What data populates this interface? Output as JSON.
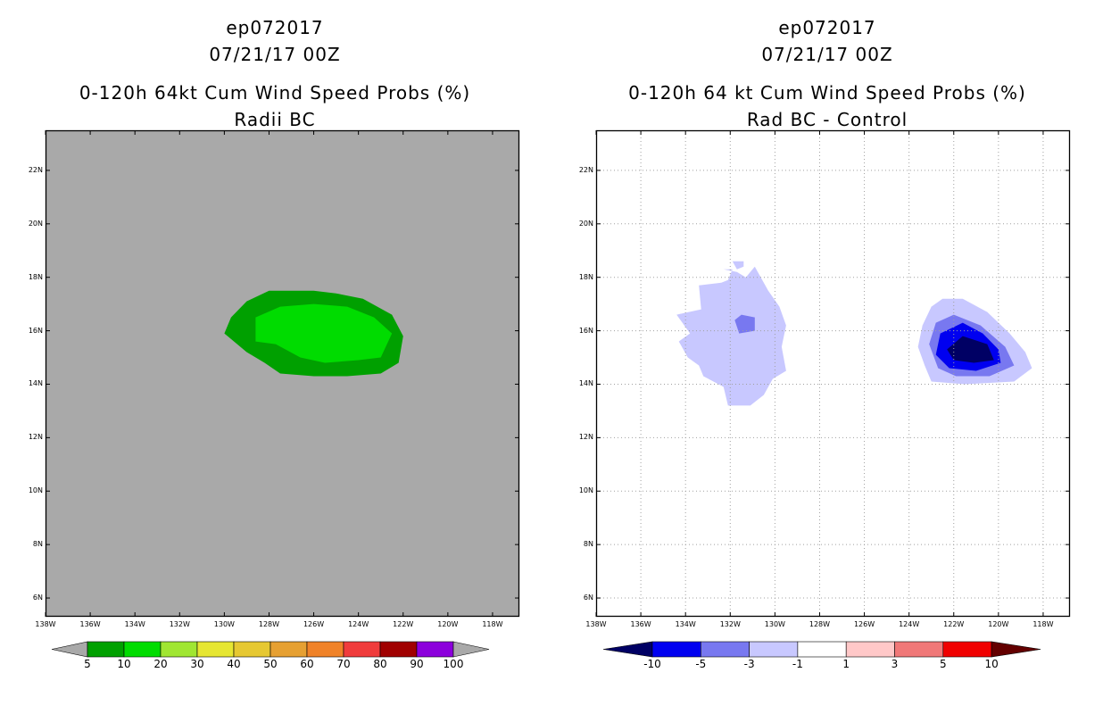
{
  "chart_data": [
    {
      "type": "heatmap",
      "title_lines": [
        "ep072017",
        "07/21/17 00Z",
        "0-120h 64kt Cum Wind Speed Probs (%)",
        "Radii BC"
      ],
      "xlabel": "",
      "ylabel": "",
      "xlim": [
        138,
        116.8
      ],
      "ylim": [
        5.3,
        23.5
      ],
      "x_ticks": [
        "138W",
        "136W",
        "134W",
        "132W",
        "130W",
        "128W",
        "126W",
        "124W",
        "122W",
        "120W",
        "118W"
      ],
      "y_ticks": [
        "6N",
        "8N",
        "10N",
        "12N",
        "14N",
        "16N",
        "18N",
        "20N",
        "22N"
      ],
      "grid": false,
      "background_color": "#a9a9a9",
      "contours": [
        {
          "level": 5,
          "color": "#00a000",
          "points": [
            [
              128,
              17.5
            ],
            [
              127,
              17.5
            ],
            [
              126,
              17.5
            ],
            [
              125,
              17.4
            ],
            [
              123.8,
              17.2
            ],
            [
              122.5,
              16.6
            ],
            [
              122,
              15.8
            ],
            [
              122.2,
              14.8
            ],
            [
              123,
              14.4
            ],
            [
              124.5,
              14.3
            ],
            [
              126,
              14.3
            ],
            [
              127.5,
              14.4
            ],
            [
              128.2,
              14.8
            ],
            [
              129,
              15.2
            ],
            [
              130,
              15.9
            ],
            [
              129.7,
              16.5
            ],
            [
              129,
              17.1
            ]
          ]
        },
        {
          "level": 10,
          "color": "#00dc00",
          "points": [
            [
              128.6,
              16.5
            ],
            [
              127.5,
              16.9
            ],
            [
              126,
              17.0
            ],
            [
              124.5,
              16.9
            ],
            [
              123.3,
              16.5
            ],
            [
              122.5,
              15.9
            ],
            [
              123,
              15
            ],
            [
              124,
              14.9
            ],
            [
              125.5,
              14.8
            ],
            [
              126.6,
              15
            ],
            [
              127.7,
              15.5
            ],
            [
              128.6,
              15.6
            ]
          ]
        }
      ],
      "colorbar": {
        "colors": [
          "#a9a9a9",
          "#00a000",
          "#00dc00",
          "#a0e632",
          "#e6e632",
          "#e6c832",
          "#e6a032",
          "#f08228",
          "#f03c3c",
          "#a00000",
          "#8c00dc",
          "#a9a9a9"
        ],
        "labels": [
          "5",
          "10",
          "20",
          "30",
          "40",
          "50",
          "60",
          "70",
          "80",
          "90",
          "100"
        ]
      }
    },
    {
      "type": "heatmap",
      "title_lines": [
        "ep072017",
        "07/21/17 00Z",
        "0-120h 64 kt Cum Wind Speed Probs (%)",
        "Rad BC - Control"
      ],
      "xlabel": "",
      "ylabel": "",
      "xlim": [
        138,
        116.8
      ],
      "ylim": [
        5.3,
        23.5
      ],
      "x_ticks": [
        "138W",
        "136W",
        "134W",
        "132W",
        "130W",
        "128W",
        "126W",
        "124W",
        "122W",
        "120W",
        "118W"
      ],
      "y_ticks": [
        "6N",
        "8N",
        "10N",
        "12N",
        "14N",
        "16N",
        "18N",
        "20N",
        "22N"
      ],
      "grid": true,
      "background_color": "#ffffff",
      "contours": [
        {
          "level": -1,
          "color": "#c8c8ff",
          "points": [
            [
              132.3,
              18.3
            ],
            [
              131.7,
              18.2
            ],
            [
              131.3,
              18.0
            ],
            [
              130.9,
              18.4
            ],
            [
              130.3,
              17.5
            ],
            [
              129.8,
              16.9
            ],
            [
              129.5,
              16.2
            ],
            [
              129.7,
              15.4
            ],
            [
              129.5,
              14.5
            ],
            [
              130.1,
              14.2
            ],
            [
              130.5,
              13.6
            ],
            [
              131.1,
              13.2
            ],
            [
              132.1,
              13.2
            ],
            [
              132.3,
              13.9
            ],
            [
              133.2,
              14.3
            ],
            [
              133.4,
              14.7
            ],
            [
              133.9,
              15.0
            ],
            [
              134.3,
              15.6
            ],
            [
              133.8,
              15.9
            ],
            [
              134.4,
              16.6
            ],
            [
              133.3,
              16.8
            ],
            [
              133.4,
              17.7
            ],
            [
              132.4,
              17.8
            ],
            [
              132.1,
              17.9
            ],
            [
              131.9,
              18.3
            ]
          ]
        },
        {
          "level": -1,
          "color": "#c8c8ff",
          "points": [
            [
              131.9,
              18.6
            ],
            [
              131.4,
              18.6
            ],
            [
              131.4,
              18.4
            ],
            [
              131.7,
              18.3
            ]
          ]
        },
        {
          "level": -1,
          "color": "#c8c8ff",
          "points": [
            [
              122.5,
              17.2
            ],
            [
              121.6,
              17.2
            ],
            [
              120.5,
              16.7
            ],
            [
              119.5,
              15.9
            ],
            [
              118.8,
              15.2
            ],
            [
              118.5,
              14.6
            ],
            [
              119.3,
              14.1
            ],
            [
              121.5,
              14.0
            ],
            [
              123,
              14.1
            ],
            [
              123.3,
              14.7
            ],
            [
              123.6,
              15.4
            ],
            [
              123.4,
              16.2
            ],
            [
              123,
              16.9
            ]
          ]
        },
        {
          "level": -3,
          "color": "#7878f0",
          "points": [
            [
              122,
              16.6
            ],
            [
              120.8,
              16.2
            ],
            [
              119.7,
              15.4
            ],
            [
              119.3,
              14.7
            ],
            [
              120.4,
              14.3
            ],
            [
              121.9,
              14.3
            ],
            [
              122.7,
              14.6
            ],
            [
              123.1,
              15.5
            ],
            [
              122.8,
              16.3
            ]
          ]
        },
        {
          "level": -3,
          "color": "#7878f0",
          "points": [
            [
              131.5,
              16.6
            ],
            [
              130.9,
              16.5
            ],
            [
              130.9,
              16.0
            ],
            [
              131.6,
              15.9
            ],
            [
              131.8,
              16.4
            ]
          ]
        },
        {
          "level": -5,
          "color": "#0000f0",
          "points": [
            [
              121.6,
              16.3
            ],
            [
              120.7,
              15.9
            ],
            [
              120,
              15.3
            ],
            [
              119.9,
              14.8
            ],
            [
              121,
              14.5
            ],
            [
              122.2,
              14.6
            ],
            [
              122.8,
              15.1
            ],
            [
              122.6,
              15.9
            ]
          ]
        },
        {
          "level": -10,
          "color": "#000064",
          "points": [
            [
              121.6,
              15.8
            ],
            [
              120.5,
              15.5
            ],
            [
              120.2,
              14.9
            ],
            [
              121.1,
              14.8
            ],
            [
              122,
              14.9
            ],
            [
              122.3,
              15.3
            ]
          ]
        }
      ],
      "colorbar": {
        "colors": [
          "#000064",
          "#0000f0",
          "#7878f0",
          "#c8c8ff",
          "#ffffff",
          "#ffc8c8",
          "#f07878",
          "#f00000",
          "#640000"
        ],
        "labels": [
          "-10",
          "-5",
          "-3",
          "-1",
          "1",
          "3",
          "5",
          "10"
        ]
      }
    }
  ]
}
